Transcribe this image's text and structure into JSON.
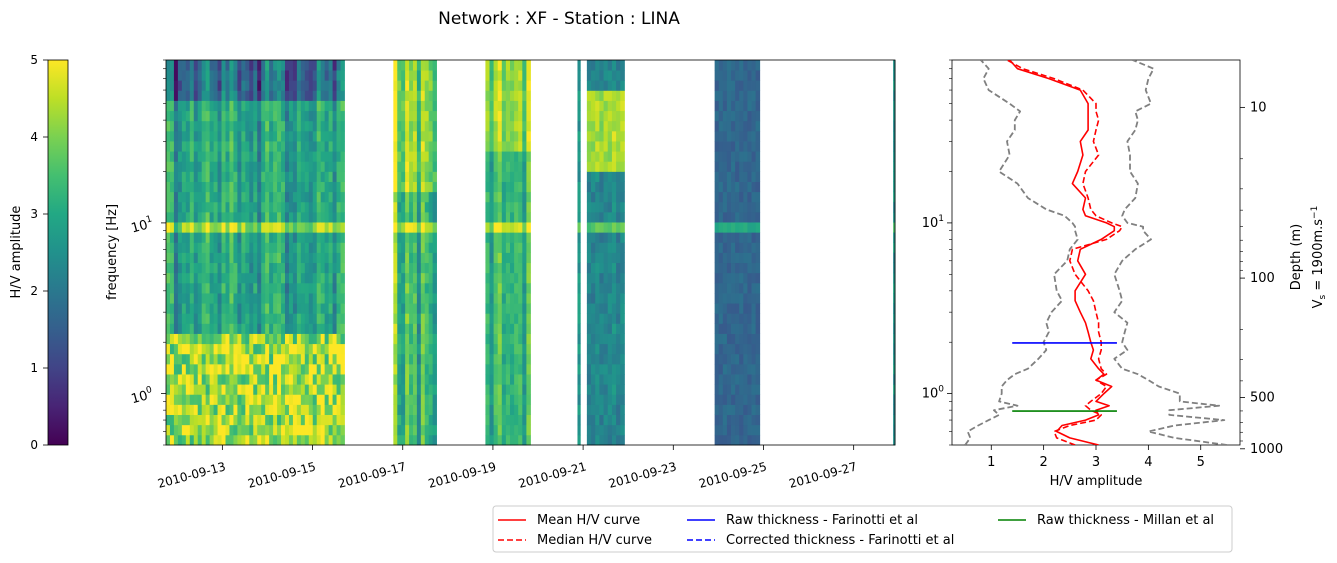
{
  "title": "Network : XF - Station : LINA",
  "colorbar": {
    "label": "H/V amplitude",
    "range": [
      0,
      5
    ],
    "ticks": [
      "0",
      "1",
      "2",
      "3",
      "4",
      "5"
    ],
    "colormap": "viridis"
  },
  "chart_data": [
    {
      "type": "heatmap",
      "name": "spectrogram",
      "ylabel": "frequency [Hz]",
      "y_scale": "log",
      "y_range_hz": [
        0.5,
        90
      ],
      "y_ticks": [
        "10^0",
        "10^1"
      ],
      "x_range": [
        "2010-09-11T18:00",
        "2010-09-27T22:00"
      ],
      "x_ticks": [
        "2010-09-13",
        "2010-09-15",
        "2010-09-17",
        "2010-09-19",
        "2010-09-21",
        "2010-09-23",
        "2010-09-25",
        "2010-09-27"
      ],
      "value_range": [
        0,
        5
      ],
      "data_segments": [
        {
          "start": "2010-09-11T18:00",
          "end": "2010-09-15T17:00",
          "character": "high low-frequency amplitude, dark top"
        },
        {
          "start": "2010-09-16T19:00",
          "end": "2010-09-17T18:00",
          "character": "bright bands"
        },
        {
          "start": "2010-09-18T20:00",
          "end": "2010-09-19T20:00",
          "character": "bright high-frequency"
        },
        {
          "start": "2010-09-20T21:00",
          "end": "2010-09-20T22:30",
          "character": "thin strip"
        },
        {
          "start": "2010-09-21T02:00",
          "end": "2010-09-21T22:00",
          "character": "bright peak near 25-40 Hz"
        },
        {
          "start": "2010-09-23T22:00",
          "end": "2010-09-24T22:00",
          "character": "low amplitude, peak near 9.5 Hz"
        },
        {
          "start": "2010-09-27T21:00",
          "end": "2010-09-27T22:00",
          "character": "thin strip"
        }
      ],
      "persistent_peak_hz": 9.5
    },
    {
      "type": "line",
      "name": "hv-curve",
      "xlabel": "H/V amplitude",
      "x_ticks": [
        "1",
        "2",
        "3",
        "4",
        "5"
      ],
      "xlim": [
        0.25,
        5.75
      ],
      "y_scale": "log",
      "ylim_hz": [
        0.5,
        90
      ],
      "y_ticks": [
        "10^0",
        "10^1"
      ],
      "secondary_y": {
        "label": "Depth (m)",
        "label2": "V",
        "label2_sub": "s",
        "label2_rest": " = 1900m.s",
        "label2_sup": "−1",
        "ticks": [
          "10",
          "100",
          "500",
          "1000"
        ]
      },
      "frequency_hz": [
        0.5,
        0.55,
        0.6,
        0.65,
        0.7,
        0.75,
        0.8,
        0.85,
        0.9,
        1.0,
        1.1,
        1.2,
        1.3,
        1.4,
        1.6,
        1.8,
        2.0,
        2.3,
        2.6,
        3.0,
        3.5,
        4.0,
        5.0,
        6.0,
        7.0,
        8.0,
        9.0,
        9.5,
        10.0,
        11.0,
        12.0,
        14.0,
        17.0,
        20.0,
        25.0,
        30.0,
        35.0,
        40.0,
        45.0,
        50.0,
        60.0,
        70.0,
        80.0,
        90.0
      ],
      "series": [
        {
          "name": "Mean H/V curve",
          "color": "#ff0000",
          "style": "solid",
          "values": [
            3.05,
            2.5,
            2.25,
            2.35,
            2.8,
            3.05,
            3.0,
            3.25,
            3.0,
            3.15,
            3.3,
            3.0,
            3.15,
            3.05,
            2.9,
            2.95,
            2.9,
            2.85,
            2.8,
            2.7,
            2.6,
            2.6,
            2.8,
            2.65,
            2.7,
            3.1,
            3.35,
            3.35,
            3.2,
            2.8,
            2.75,
            2.8,
            2.55,
            2.65,
            2.75,
            2.7,
            2.85,
            2.85,
            2.85,
            2.85,
            2.7,
            2.1,
            1.5,
            1.35
          ]
        },
        {
          "name": "Median H/V curve",
          "color": "#ff0000",
          "style": "dashed",
          "values": [
            2.6,
            2.25,
            2.2,
            2.5,
            3.0,
            3.1,
            2.9,
            2.8,
            2.9,
            3.1,
            3.2,
            3.0,
            3.2,
            3.1,
            3.05,
            3.1,
            3.1,
            3.05,
            3.05,
            3.0,
            2.95,
            2.85,
            2.6,
            2.5,
            2.55,
            3.2,
            3.45,
            3.5,
            3.3,
            3.0,
            2.9,
            2.85,
            2.75,
            2.8,
            3.05,
            2.95,
            3.0,
            3.05,
            3.0,
            3.0,
            2.75,
            2.2,
            1.6,
            1.3
          ]
        },
        {
          "name": "16th percentile",
          "color": "#808080",
          "style": "dashed",
          "values": [
            0.5,
            0.6,
            0.55,
            0.75,
            0.95,
            1.15,
            1.05,
            1.5,
            1.15,
            1.2,
            1.2,
            1.3,
            1.45,
            1.7,
            1.9,
            2.05,
            2.0,
            2.1,
            2.05,
            2.15,
            2.35,
            2.25,
            2.2,
            2.45,
            2.5,
            2.65,
            2.6,
            2.6,
            2.55,
            2.4,
            2.05,
            1.7,
            1.5,
            1.15,
            1.35,
            1.3,
            1.45,
            1.45,
            1.55,
            1.35,
            0.95,
            0.85,
            0.95,
            0.8
          ]
        },
        {
          "name": "84th percentile",
          "color": "#808080",
          "style": "dashed",
          "values": [
            5.5,
            4.5,
            4.0,
            4.5,
            5.45,
            4.4,
            4.4,
            5.35,
            4.6,
            4.6,
            4.2,
            4.0,
            3.8,
            3.5,
            3.35,
            3.6,
            3.5,
            3.55,
            3.6,
            3.35,
            3.5,
            3.45,
            3.35,
            3.5,
            3.75,
            4.05,
            3.9,
            3.9,
            3.6,
            3.5,
            3.55,
            3.75,
            3.8,
            3.65,
            3.65,
            3.6,
            3.75,
            3.8,
            3.75,
            4.05,
            3.95,
            4.0,
            4.1,
            3.7
          ]
        }
      ],
      "hlines": [
        {
          "name": "Raw thickness - Farinotti et al",
          "color": "#0000ff",
          "freq_hz": 1.98,
          "x_from": 1.4,
          "x_to": 3.4
        },
        {
          "name": "Raw thickness - Millan et al",
          "color": "#008000",
          "freq_hz": 0.79,
          "x_from": 1.4,
          "x_to": 3.4
        }
      ]
    }
  ],
  "legend": [
    {
      "label": "Mean H/V curve",
      "color": "#ff0000",
      "style": "solid"
    },
    {
      "label": "Median H/V curve",
      "color": "#ff0000",
      "style": "dashed"
    },
    {
      "label": "Raw thickness - Farinotti et al",
      "color": "#0000ff",
      "style": "solid"
    },
    {
      "label": "Corrected thickness - Farinotti et al",
      "color": "#0000ff",
      "style": "dashed"
    },
    {
      "label": "Raw thickness - Millan et al",
      "color": "#008000",
      "style": "solid"
    }
  ]
}
